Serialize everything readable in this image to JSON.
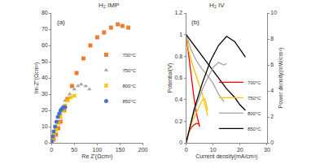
{
  "chart_data": [
    {
      "type": "scatter",
      "title": "H₂ IMP",
      "annotation": "(a)",
      "x_label": "Re Z'(Ωcm²)",
      "y_label": "Im-Z''(Ωcm²)",
      "xlim": [
        0,
        200
      ],
      "xticks": [
        0,
        50,
        100,
        150,
        200
      ],
      "ylim": [
        0,
        80
      ],
      "yticks": [
        0,
        10,
        20,
        30,
        40,
        50,
        60,
        70,
        80
      ],
      "grid": false,
      "legend": "center right",
      "series": [
        {
          "name": "700°C",
          "color": "#ed7d31",
          "marker": "square",
          "x": [
            5,
            10,
            15,
            20,
            28,
            35,
            45,
            55,
            70,
            85,
            100,
            115,
            130,
            145,
            155,
            168
          ],
          "values": [
            2,
            5,
            9,
            13,
            20,
            27,
            35,
            43,
            52,
            60,
            65,
            68,
            71,
            73,
            72,
            71
          ]
        },
        {
          "name": "750°C",
          "color": "#a5a5a5",
          "marker": "triangle-up",
          "x": [
            3,
            6,
            10,
            15,
            20,
            25,
            30,
            40,
            50,
            58,
            65,
            75,
            83
          ],
          "values": [
            2,
            5,
            9,
            13,
            18,
            22,
            26,
            30,
            33,
            35,
            36,
            35,
            33
          ]
        },
        {
          "name": "800°C",
          "color": "#ffc000",
          "marker": "x",
          "x": [
            2,
            5,
            10,
            15,
            20,
            25,
            30,
            35,
            42,
            50
          ],
          "values": [
            2,
            5,
            8,
            12,
            16,
            20,
            23,
            26,
            28,
            29
          ]
        },
        {
          "name": "850°C",
          "color": "#4472c4",
          "marker": "circle",
          "x": [
            1,
            3,
            5,
            8,
            11,
            14,
            17,
            20,
            23,
            26,
            30
          ],
          "values": [
            1,
            4,
            7,
            10,
            13,
            16,
            18,
            20,
            21,
            22,
            22
          ]
        }
      ]
    },
    {
      "type": "line",
      "title": "H₂ IV",
      "annotation": "(b)",
      "x_label": "Current density(mA/cm²)",
      "y_label": "Potential(V)",
      "y2_label": "Power density(mW/cm²)",
      "xlim": [
        0,
        30
      ],
      "xticks": [
        0,
        10,
        20,
        30
      ],
      "ylim": [
        0,
        1.2
      ],
      "yticks": [
        0,
        0.2,
        0.4,
        0.6,
        0.8,
        1,
        1.2
      ],
      "y2lim": [
        0,
        10
      ],
      "y2ticks": [
        0,
        2,
        4,
        6,
        8,
        10
      ],
      "grid": false,
      "legend": "lower right",
      "series": [
        {
          "name": "700°C",
          "color": "#ff0000",
          "line_style": "solid",
          "x": [
            0,
            1,
            2,
            3,
            4,
            5
          ],
          "values": [
            1.0,
            0.8,
            0.6,
            0.4,
            0.25,
            0.15
          ]
        },
        {
          "name": "750°C",
          "color": "#ffc000",
          "line_style": "solid",
          "x": [
            0,
            1,
            2,
            4,
            6,
            7,
            8
          ],
          "values": [
            1.0,
            0.85,
            0.75,
            0.6,
            0.45,
            0.35,
            0.25
          ]
        },
        {
          "name": "800°C",
          "color": "#a5a5a5",
          "line_style": "solid",
          "x": [
            0,
            2,
            4,
            6,
            8,
            10,
            12,
            14
          ],
          "values": [
            1.0,
            0.85,
            0.75,
            0.68,
            0.62,
            0.55,
            0.45,
            0.38
          ]
        },
        {
          "name": "850°C",
          "color": "#000000",
          "line_style": "solid",
          "x": [
            0,
            3,
            6,
            9,
            12,
            15,
            18,
            20,
            22
          ],
          "values": [
            1.0,
            0.9,
            0.8,
            0.7,
            0.6,
            0.5,
            0.42,
            0.35,
            0.3
          ]
        },
        {
          "name": "700°C",
          "color": "#ff0000",
          "line_style": "solid",
          "axis": "y2",
          "x": [
            0,
            1,
            2,
            3,
            4,
            5
          ],
          "values": [
            0,
            0.8,
            1.2,
            1.4,
            1.5,
            1.4
          ]
        },
        {
          "name": "750°C",
          "color": "#ffc000",
          "line_style": "solid",
          "axis": "y2",
          "x": [
            0,
            2,
            4,
            6,
            7,
            8
          ],
          "values": [
            0,
            1.5,
            2.4,
            3.3,
            3.4,
            2.5
          ]
        },
        {
          "name": "800°C",
          "color": "#a5a5a5",
          "line_style": "solid",
          "axis": "y2",
          "x": [
            0,
            2,
            4,
            6,
            8,
            10,
            12,
            14,
            15
          ],
          "values": [
            0,
            1.7,
            3.0,
            4.1,
            5.0,
            5.8,
            6.2,
            6.0,
            6.1
          ]
        },
        {
          "name": "850°C",
          "color": "#000000",
          "line_style": "solid",
          "axis": "y2",
          "x": [
            0,
            3,
            6,
            9,
            12,
            15,
            18,
            20,
            22
          ],
          "values": [
            0,
            2.6,
            4.6,
            6.3,
            7.5,
            8.2,
            7.8,
            7.2,
            6.6
          ]
        }
      ]
    }
  ]
}
